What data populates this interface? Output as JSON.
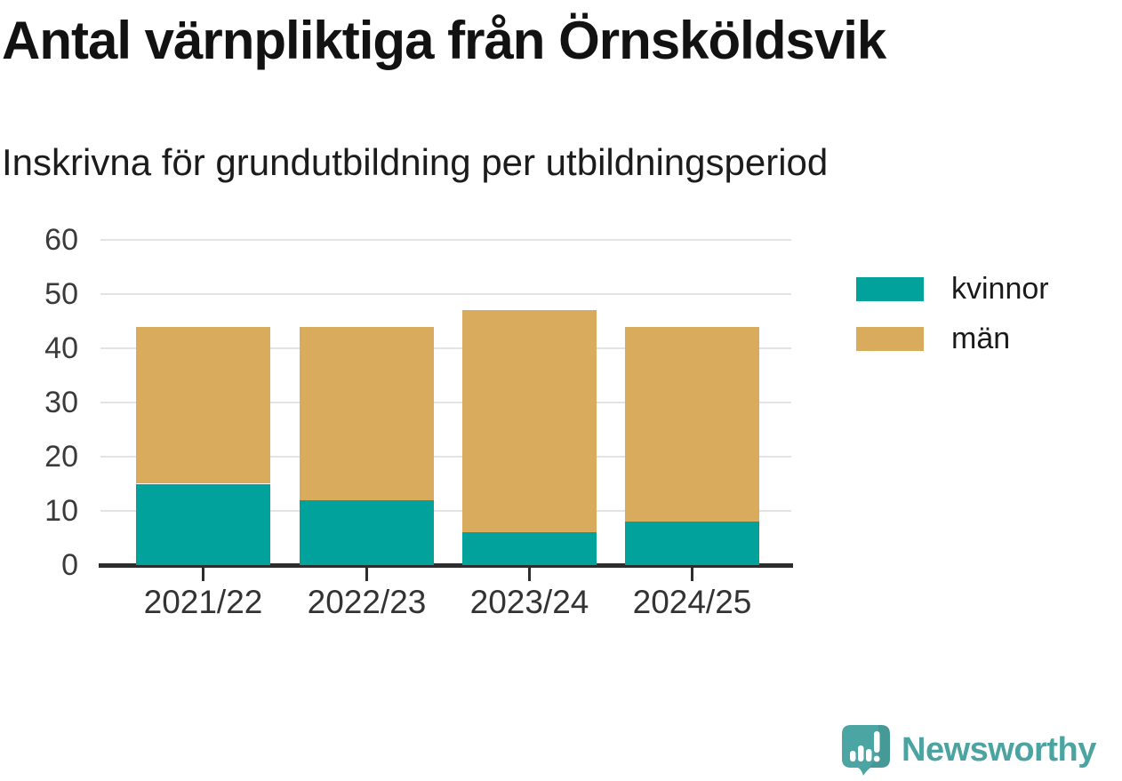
{
  "header": {
    "title": "Antal värnpliktiga från Örnsköldsvik",
    "subtitle": "Inskrivna för grundutbildning per utbildningsperiod"
  },
  "chart_data": {
    "type": "bar",
    "stacked": true,
    "title": "Antal värnpliktiga från Örnsköldsvik",
    "subtitle": "Inskrivna för grundutbildning per utbildningsperiod",
    "categories": [
      "2021/22",
      "2022/23",
      "2023/24",
      "2024/25"
    ],
    "series": [
      {
        "name": "kvinnor",
        "color": "#00a29b",
        "values": [
          15,
          12,
          6,
          8
        ]
      },
      {
        "name": "män",
        "color": "#d9ab5c",
        "values": [
          29,
          32,
          41,
          36
        ]
      }
    ],
    "stack_totals": [
      44,
      44,
      47,
      44
    ],
    "xlabel": "",
    "ylabel": "",
    "ylim": [
      0,
      60
    ],
    "yticks": [
      0,
      10,
      20,
      30,
      40,
      50,
      60
    ],
    "grid": true,
    "legend_position": "right"
  },
  "branding": {
    "logo_text": "Newsworthy",
    "logo_color": "#4ba3a2"
  },
  "colors": {
    "background": "#ffffff",
    "kvinnor": "#00a29b",
    "man": "#d9ab5c",
    "axis": "#2d2d2d",
    "gridline": "#e3e3e3",
    "tick_text": "#3a3a3a",
    "title_text": "#121212"
  }
}
